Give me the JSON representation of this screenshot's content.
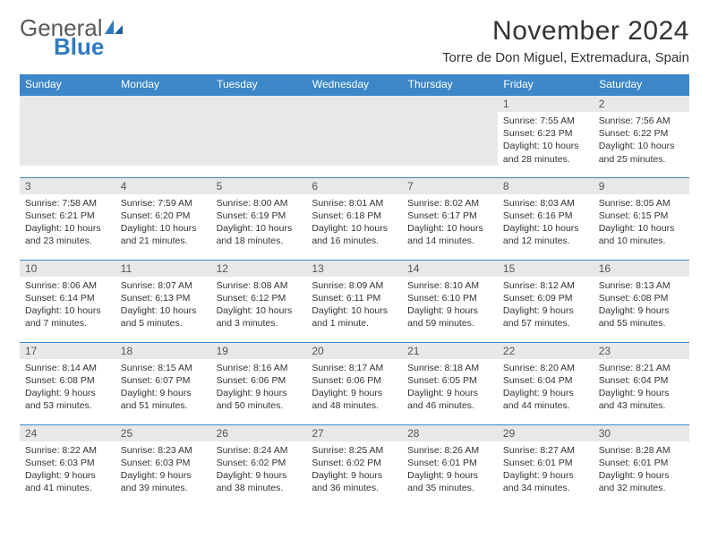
{
  "brand": {
    "word1": "General",
    "word2": "Blue"
  },
  "title": "November 2024",
  "location": "Torre de Don Miguel, Extremadura, Spain",
  "weekdays": [
    "Sunday",
    "Monday",
    "Tuesday",
    "Wednesday",
    "Thursday",
    "Friday",
    "Saturday"
  ],
  "colors": {
    "header_bg": "#3b87c8",
    "header_text": "#ffffff",
    "daynum_bg": "#e8e8e8",
    "rule": "#3b87c8",
    "body_text": "#333333",
    "logo_gray": "#5a5a5a",
    "logo_blue": "#2f7bbf"
  },
  "weeks": [
    [
      null,
      null,
      null,
      null,
      null,
      {
        "n": "1",
        "sr": "7:55 AM",
        "ss": "6:23 PM",
        "dl": "10 hours and 28 minutes."
      },
      {
        "n": "2",
        "sr": "7:56 AM",
        "ss": "6:22 PM",
        "dl": "10 hours and 25 minutes."
      }
    ],
    [
      {
        "n": "3",
        "sr": "7:58 AM",
        "ss": "6:21 PM",
        "dl": "10 hours and 23 minutes."
      },
      {
        "n": "4",
        "sr": "7:59 AM",
        "ss": "6:20 PM",
        "dl": "10 hours and 21 minutes."
      },
      {
        "n": "5",
        "sr": "8:00 AM",
        "ss": "6:19 PM",
        "dl": "10 hours and 18 minutes."
      },
      {
        "n": "6",
        "sr": "8:01 AM",
        "ss": "6:18 PM",
        "dl": "10 hours and 16 minutes."
      },
      {
        "n": "7",
        "sr": "8:02 AM",
        "ss": "6:17 PM",
        "dl": "10 hours and 14 minutes."
      },
      {
        "n": "8",
        "sr": "8:03 AM",
        "ss": "6:16 PM",
        "dl": "10 hours and 12 minutes."
      },
      {
        "n": "9",
        "sr": "8:05 AM",
        "ss": "6:15 PM",
        "dl": "10 hours and 10 minutes."
      }
    ],
    [
      {
        "n": "10",
        "sr": "8:06 AM",
        "ss": "6:14 PM",
        "dl": "10 hours and 7 minutes."
      },
      {
        "n": "11",
        "sr": "8:07 AM",
        "ss": "6:13 PM",
        "dl": "10 hours and 5 minutes."
      },
      {
        "n": "12",
        "sr": "8:08 AM",
        "ss": "6:12 PM",
        "dl": "10 hours and 3 minutes."
      },
      {
        "n": "13",
        "sr": "8:09 AM",
        "ss": "6:11 PM",
        "dl": "10 hours and 1 minute."
      },
      {
        "n": "14",
        "sr": "8:10 AM",
        "ss": "6:10 PM",
        "dl": "9 hours and 59 minutes."
      },
      {
        "n": "15",
        "sr": "8:12 AM",
        "ss": "6:09 PM",
        "dl": "9 hours and 57 minutes."
      },
      {
        "n": "16",
        "sr": "8:13 AM",
        "ss": "6:08 PM",
        "dl": "9 hours and 55 minutes."
      }
    ],
    [
      {
        "n": "17",
        "sr": "8:14 AM",
        "ss": "6:08 PM",
        "dl": "9 hours and 53 minutes."
      },
      {
        "n": "18",
        "sr": "8:15 AM",
        "ss": "6:07 PM",
        "dl": "9 hours and 51 minutes."
      },
      {
        "n": "19",
        "sr": "8:16 AM",
        "ss": "6:06 PM",
        "dl": "9 hours and 50 minutes."
      },
      {
        "n": "20",
        "sr": "8:17 AM",
        "ss": "6:06 PM",
        "dl": "9 hours and 48 minutes."
      },
      {
        "n": "21",
        "sr": "8:18 AM",
        "ss": "6:05 PM",
        "dl": "9 hours and 46 minutes."
      },
      {
        "n": "22",
        "sr": "8:20 AM",
        "ss": "6:04 PM",
        "dl": "9 hours and 44 minutes."
      },
      {
        "n": "23",
        "sr": "8:21 AM",
        "ss": "6:04 PM",
        "dl": "9 hours and 43 minutes."
      }
    ],
    [
      {
        "n": "24",
        "sr": "8:22 AM",
        "ss": "6:03 PM",
        "dl": "9 hours and 41 minutes."
      },
      {
        "n": "25",
        "sr": "8:23 AM",
        "ss": "6:03 PM",
        "dl": "9 hours and 39 minutes."
      },
      {
        "n": "26",
        "sr": "8:24 AM",
        "ss": "6:02 PM",
        "dl": "9 hours and 38 minutes."
      },
      {
        "n": "27",
        "sr": "8:25 AM",
        "ss": "6:02 PM",
        "dl": "9 hours and 36 minutes."
      },
      {
        "n": "28",
        "sr": "8:26 AM",
        "ss": "6:01 PM",
        "dl": "9 hours and 35 minutes."
      },
      {
        "n": "29",
        "sr": "8:27 AM",
        "ss": "6:01 PM",
        "dl": "9 hours and 34 minutes."
      },
      {
        "n": "30",
        "sr": "8:28 AM",
        "ss": "6:01 PM",
        "dl": "9 hours and 32 minutes."
      }
    ]
  ],
  "labels": {
    "sunrise": "Sunrise:",
    "sunset": "Sunset:",
    "daylight": "Daylight:"
  }
}
